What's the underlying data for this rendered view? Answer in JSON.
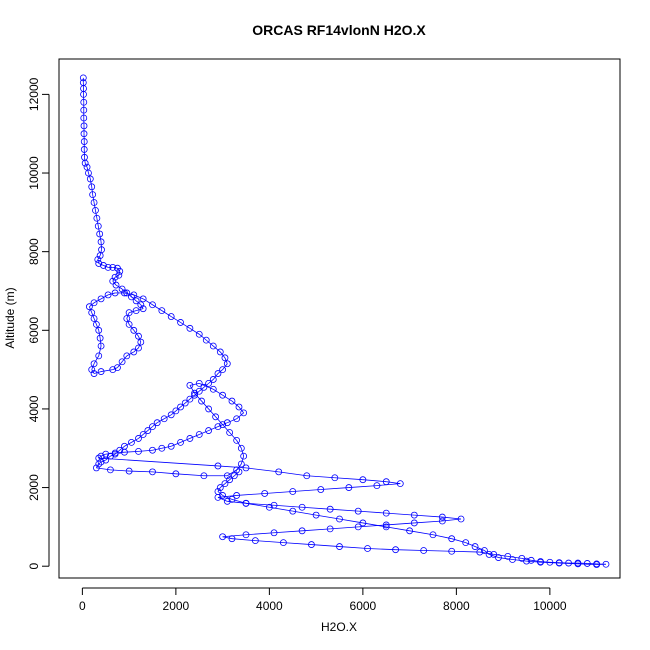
{
  "chart_data": {
    "type": "scatter",
    "title": "ORCAS RF14vlonN H2O.X",
    "xlabel": "H2O.X",
    "ylabel": "Altitude (m)",
    "xlim": [
      -500,
      11500
    ],
    "ylim": [
      -300,
      12900
    ],
    "xticks": [
      0,
      2000,
      4000,
      6000,
      8000,
      10000
    ],
    "yticks": [
      0,
      2000,
      4000,
      6000,
      8000,
      10000,
      12000
    ],
    "grid": false,
    "legend": "none",
    "marker": "open-circle",
    "connected": true,
    "color": "#0000ff",
    "points": [
      [
        20,
        12420
      ],
      [
        20,
        12300
      ],
      [
        25,
        12150
      ],
      [
        25,
        12000
      ],
      [
        30,
        11800
      ],
      [
        30,
        11600
      ],
      [
        30,
        11400
      ],
      [
        35,
        11200
      ],
      [
        35,
        11000
      ],
      [
        40,
        10800
      ],
      [
        40,
        10600
      ],
      [
        45,
        10400
      ],
      [
        60,
        10250
      ],
      [
        100,
        10150
      ],
      [
        130,
        10000
      ],
      [
        170,
        9850
      ],
      [
        200,
        9650
      ],
      [
        220,
        9450
      ],
      [
        250,
        9250
      ],
      [
        280,
        9050
      ],
      [
        310,
        8850
      ],
      [
        340,
        8650
      ],
      [
        370,
        8450
      ],
      [
        400,
        8250
      ],
      [
        410,
        8050
      ],
      [
        380,
        7900
      ],
      [
        330,
        7800
      ],
      [
        350,
        7700
      ],
      [
        450,
        7650
      ],
      [
        550,
        7600
      ],
      [
        650,
        7600
      ],
      [
        750,
        7580
      ],
      [
        800,
        7500
      ],
      [
        780,
        7400
      ],
      [
        700,
        7350
      ],
      [
        650,
        7250
      ],
      [
        720,
        7150
      ],
      [
        850,
        7050
      ],
      [
        950,
        6950
      ],
      [
        1050,
        6850
      ],
      [
        1150,
        6750
      ],
      [
        1250,
        6650
      ],
      [
        1300,
        6550
      ],
      [
        1150,
        6500
      ],
      [
        1000,
        6450
      ],
      [
        950,
        6300
      ],
      [
        1000,
        6150
      ],
      [
        1100,
        6000
      ],
      [
        1200,
        5850
      ],
      [
        1250,
        5700
      ],
      [
        1200,
        5550
      ],
      [
        1100,
        5450
      ],
      [
        950,
        5350
      ],
      [
        850,
        5200
      ],
      [
        750,
        5050
      ],
      [
        650,
        5000
      ],
      [
        400,
        4950
      ],
      [
        250,
        4900
      ],
      [
        200,
        5000
      ],
      [
        250,
        5150
      ],
      [
        350,
        5350
      ],
      [
        400,
        5600
      ],
      [
        380,
        5800
      ],
      [
        350,
        6000
      ],
      [
        300,
        6150
      ],
      [
        250,
        6300
      ],
      [
        200,
        6450
      ],
      [
        150,
        6600
      ],
      [
        250,
        6700
      ],
      [
        400,
        6800
      ],
      [
        550,
        6900
      ],
      [
        700,
        6950
      ],
      [
        900,
        6950
      ],
      [
        1100,
        6900
      ],
      [
        1300,
        6800
      ],
      [
        1500,
        6650
      ],
      [
        1700,
        6500
      ],
      [
        1900,
        6350
      ],
      [
        2100,
        6200
      ],
      [
        2300,
        6050
      ],
      [
        2500,
        5900
      ],
      [
        2650,
        5750
      ],
      [
        2800,
        5600
      ],
      [
        2950,
        5450
      ],
      [
        3050,
        5300
      ],
      [
        3100,
        5150
      ],
      [
        3000,
        5000
      ],
      [
        2900,
        4900
      ],
      [
        2800,
        4750
      ],
      [
        2700,
        4650
      ],
      [
        2600,
        4550
      ],
      [
        2500,
        4450
      ],
      [
        2400,
        4350
      ],
      [
        2300,
        4250
      ],
      [
        2200,
        4150
      ],
      [
        2100,
        4050
      ],
      [
        2000,
        3950
      ],
      [
        1900,
        3850
      ],
      [
        1750,
        3750
      ],
      [
        1600,
        3650
      ],
      [
        1500,
        3550
      ],
      [
        1400,
        3450
      ],
      [
        1300,
        3350
      ],
      [
        1200,
        3250
      ],
      [
        1050,
        3150
      ],
      [
        900,
        3050
      ],
      [
        800,
        2950
      ],
      [
        700,
        2850
      ],
      [
        600,
        2800
      ],
      [
        500,
        2700
      ],
      [
        400,
        2650
      ],
      [
        350,
        2600
      ],
      [
        300,
        2500
      ],
      [
        600,
        2450
      ],
      [
        1000,
        2420
      ],
      [
        1500,
        2400
      ],
      [
        2000,
        2350
      ],
      [
        2600,
        2300
      ],
      [
        3100,
        2300
      ],
      [
        3300,
        2450
      ],
      [
        3400,
        2600
      ],
      [
        3450,
        2800
      ],
      [
        3400,
        3000
      ],
      [
        3300,
        3200
      ],
      [
        3150,
        3400
      ],
      [
        3000,
        3600
      ],
      [
        2850,
        3800
      ],
      [
        2700,
        4000
      ],
      [
        2550,
        4200
      ],
      [
        2400,
        4400
      ],
      [
        2300,
        4600
      ],
      [
        2500,
        4650
      ],
      [
        2800,
        4500
      ],
      [
        3000,
        4350
      ],
      [
        3200,
        4200
      ],
      [
        3350,
        4050
      ],
      [
        3450,
        3900
      ],
      [
        3300,
        3750
      ],
      [
        3100,
        3650
      ],
      [
        2900,
        3550
      ],
      [
        2700,
        3450
      ],
      [
        2500,
        3350
      ],
      [
        2300,
        3250
      ],
      [
        2100,
        3150
      ],
      [
        1900,
        3050
      ],
      [
        1700,
        3000
      ],
      [
        1500,
        2950
      ],
      [
        1200,
        2920
      ],
      [
        900,
        2900
      ],
      [
        700,
        2880
      ],
      [
        500,
        2850
      ],
      [
        400,
        2800
      ],
      [
        350,
        2750
      ],
      [
        2900,
        2550
      ],
      [
        3500,
        2500
      ],
      [
        4200,
        2400
      ],
      [
        4800,
        2300
      ],
      [
        5400,
        2250
      ],
      [
        6000,
        2200
      ],
      [
        6500,
        2150
      ],
      [
        6800,
        2100
      ],
      [
        6300,
        2050
      ],
      [
        5700,
        2000
      ],
      [
        5100,
        1950
      ],
      [
        4500,
        1900
      ],
      [
        3900,
        1850
      ],
      [
        3300,
        1800
      ],
      [
        2900,
        1750
      ],
      [
        3100,
        1650
      ],
      [
        3500,
        1600
      ],
      [
        4100,
        1550
      ],
      [
        4700,
        1500
      ],
      [
        5300,
        1450
      ],
      [
        5900,
        1400
      ],
      [
        6500,
        1350
      ],
      [
        7100,
        1300
      ],
      [
        7700,
        1250
      ],
      [
        8100,
        1200
      ],
      [
        7700,
        1150
      ],
      [
        7100,
        1100
      ],
      [
        6500,
        1050
      ],
      [
        5900,
        1000
      ],
      [
        5300,
        950
      ],
      [
        4700,
        900
      ],
      [
        4100,
        850
      ],
      [
        3500,
        800
      ],
      [
        3000,
        750
      ],
      [
        3200,
        700
      ],
      [
        3700,
        650
      ],
      [
        4300,
        600
      ],
      [
        4900,
        550
      ],
      [
        5500,
        500
      ],
      [
        6100,
        450
      ],
      [
        6700,
        420
      ],
      [
        7300,
        400
      ],
      [
        7900,
        380
      ],
      [
        8500,
        360
      ],
      [
        8800,
        300
      ],
      [
        9100,
        250
      ],
      [
        9400,
        200
      ],
      [
        9600,
        150
      ],
      [
        9800,
        120
      ],
      [
        10000,
        100
      ],
      [
        10200,
        90
      ],
      [
        10400,
        80
      ],
      [
        10600,
        80
      ],
      [
        10800,
        70
      ],
      [
        11000,
        60
      ],
      [
        11200,
        50
      ],
      [
        11000,
        40
      ],
      [
        10600,
        60
      ],
      [
        10200,
        80
      ],
      [
        9800,
        100
      ],
      [
        9500,
        130
      ],
      [
        9200,
        170
      ],
      [
        8900,
        220
      ],
      [
        8700,
        300
      ],
      [
        8600,
        400
      ],
      [
        8400,
        500
      ],
      [
        8200,
        600
      ],
      [
        7900,
        700
      ],
      [
        7500,
        800
      ],
      [
        7000,
        900
      ],
      [
        6500,
        1000
      ],
      [
        6000,
        1100
      ],
      [
        5500,
        1200
      ],
      [
        5000,
        1300
      ],
      [
        4500,
        1400
      ],
      [
        4000,
        1500
      ],
      [
        3500,
        1600
      ],
      [
        3200,
        1700
      ],
      [
        3000,
        1800
      ],
      [
        2900,
        1900
      ],
      [
        2950,
        2000
      ],
      [
        3050,
        2100
      ],
      [
        3150,
        2200
      ],
      [
        3250,
        2300
      ],
      [
        3350,
        2400
      ]
    ]
  }
}
